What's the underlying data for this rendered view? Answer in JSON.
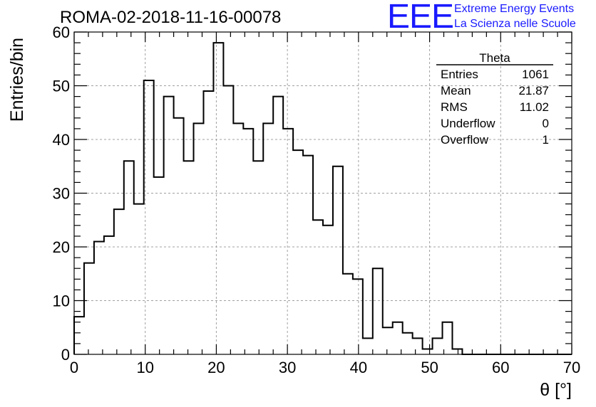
{
  "title": "ROMA-02-2018-11-16-00078",
  "logo": {
    "mark": "EEE",
    "line1": "Extreme Energy Events",
    "line2": "La Scienza nelle Scuole"
  },
  "chart_data": {
    "type": "histogram",
    "title": "ROMA-02-2018-11-16-00078",
    "xlabel": "θ [°]",
    "ylabel": "Entries/bin",
    "xlim": [
      0,
      70
    ],
    "ylim": [
      0,
      60
    ],
    "xticks": [
      0,
      10,
      20,
      30,
      40,
      50,
      60,
      70
    ],
    "yticks": [
      0,
      10,
      20,
      30,
      40,
      50,
      60
    ],
    "grid": true,
    "bin_width": 1.4,
    "bin_start": 0,
    "values": [
      7,
      17,
      21,
      22,
      27,
      36,
      28,
      51,
      33,
      48,
      44,
      36,
      43,
      49,
      58,
      50,
      43,
      42,
      36,
      43,
      48,
      42,
      38,
      37,
      25,
      24,
      35,
      15,
      14,
      3,
      16,
      5,
      6,
      4,
      3,
      1,
      3,
      6,
      1,
      0,
      0,
      0,
      0,
      0,
      0,
      0,
      0,
      0,
      0,
      0
    ],
    "stats": {
      "name": "Theta",
      "rows": [
        {
          "label": "Entries",
          "value": "1061"
        },
        {
          "label": "Mean",
          "value": "21.87"
        },
        {
          "label": "RMS",
          "value": "11.02"
        },
        {
          "label": "Underflow",
          "value": "0"
        },
        {
          "label": "Overflow",
          "value": "1"
        }
      ]
    },
    "line_color": "#000000",
    "grid_color": "#a0a0a0",
    "accent_color": "#1a1aff"
  }
}
